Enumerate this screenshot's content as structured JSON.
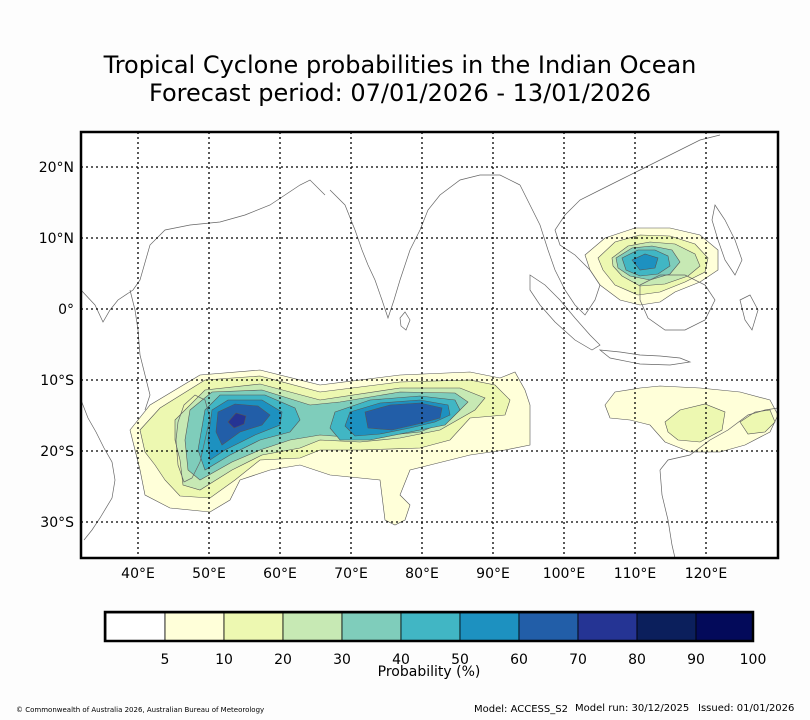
{
  "title": {
    "line1": "Tropical Cyclone probabilities in the Indian Ocean",
    "line2": "Forecast period: 07/01/2026 - 13/01/2026"
  },
  "map": {
    "region": "Indian Ocean",
    "lon_range": [
      32,
      130
    ],
    "lat_range": [
      -35,
      25
    ],
    "lat_ticks": [
      {
        "value": 20,
        "label": "20°N"
      },
      {
        "value": 10,
        "label": "10°N"
      },
      {
        "value": 0,
        "label": "0°"
      },
      {
        "value": -10,
        "label": "10°S"
      },
      {
        "value": -20,
        "label": "20°S"
      },
      {
        "value": -30,
        "label": "30°S"
      }
    ],
    "lon_ticks": [
      {
        "value": 40,
        "label": "40°E"
      },
      {
        "value": 50,
        "label": "50°E"
      },
      {
        "value": 60,
        "label": "60°E"
      },
      {
        "value": 70,
        "label": "70°E"
      },
      {
        "value": 80,
        "label": "80°E"
      },
      {
        "value": 90,
        "label": "90°E"
      },
      {
        "value": 100,
        "label": "100°E"
      },
      {
        "value": 110,
        "label": "110°E"
      },
      {
        "value": 120,
        "label": "120°E"
      }
    ]
  },
  "legend": {
    "colors": [
      "#ffffff",
      "#ffffd9",
      "#edf8b1",
      "#c7e9b4",
      "#7fcdbb",
      "#41b6c4",
      "#1d91c0",
      "#225ea8",
      "#253494",
      "#0b1f5c",
      "#030a5a"
    ],
    "tick_labels": [
      "5",
      "10",
      "20",
      "30",
      "40",
      "50",
      "60",
      "70",
      "80",
      "90",
      "100"
    ],
    "label": "Probability (%)"
  },
  "footer": {
    "copyright": "© Commonwealth of Australia 2026, Australian Bureau of Meteorology",
    "model": "Model: ACCESS_S2",
    "model_run": "Model run: 30/12/2025",
    "issued": "Issued: 01/01/2026"
  }
}
